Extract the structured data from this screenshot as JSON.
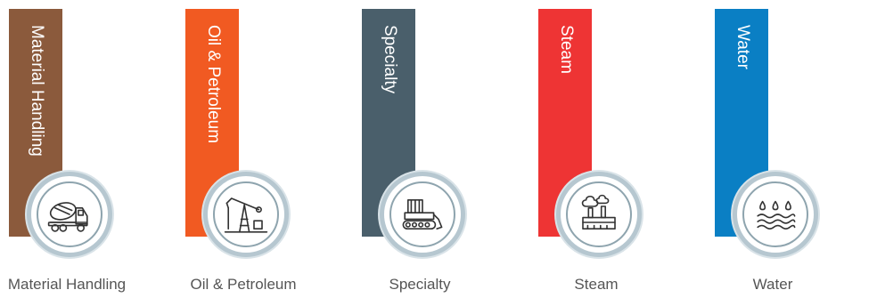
{
  "categories": [
    {
      "bar_label": "Material Handling",
      "caption": "Material Handling",
      "color": "#8b5a3c",
      "icon": "concrete-mixer-icon"
    },
    {
      "bar_label": "Oil & Petroleum",
      "caption": "Oil & Petroleum",
      "color": "#f15a22",
      "icon": "oil-pump-icon"
    },
    {
      "bar_label": "Specialty",
      "caption": "Specialty",
      "color": "#4a5f6b",
      "icon": "bulldozer-icon"
    },
    {
      "bar_label": "Steam",
      "caption": "Steam",
      "color": "#ee3434",
      "icon": "factory-steam-icon"
    },
    {
      "bar_label": "Water",
      "caption": "Water",
      "color": "#0a7fc4",
      "icon": "water-waves-icon"
    }
  ]
}
